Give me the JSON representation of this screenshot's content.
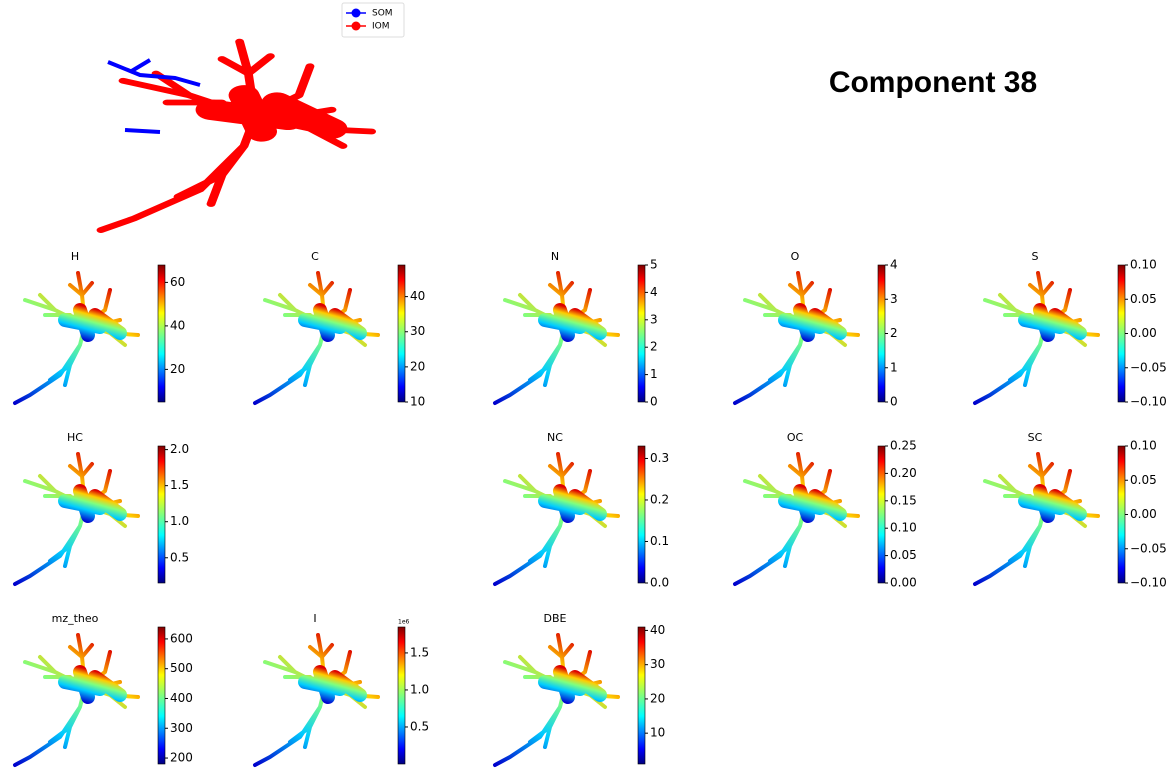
{
  "chart_data": [
    {
      "type": "network",
      "title": "Component 38",
      "series": [
        {
          "name": "SOM",
          "color": "#0000ff"
        },
        {
          "name": "IOM",
          "color": "#ff0000"
        }
      ]
    },
    {
      "type": "colored-network",
      "title": "H",
      "clim": [
        5,
        68
      ],
      "cticks": [
        20,
        40,
        60
      ]
    },
    {
      "type": "colored-network",
      "title": "C",
      "clim": [
        10,
        49
      ],
      "cticks": [
        10,
        20,
        30,
        40
      ]
    },
    {
      "type": "colored-network",
      "title": "N",
      "clim": [
        0,
        5
      ],
      "cticks": [
        0,
        1,
        2,
        3,
        4,
        5
      ]
    },
    {
      "type": "colored-network",
      "title": "O",
      "clim": [
        0,
        4
      ],
      "cticks": [
        0,
        1,
        2,
        3,
        4
      ]
    },
    {
      "type": "colored-network",
      "title": "S",
      "clim": [
        -0.1,
        0.1
      ],
      "cticks": [
        {
          "value": 0.1,
          "label": "0.10"
        },
        {
          "value": 0.05,
          "label": "0.05"
        },
        {
          "value": 0,
          "label": "0.00"
        },
        {
          "value": -0.05,
          "label": "−0.05"
        },
        {
          "value": -0.1,
          "label": "−0.10"
        }
      ]
    },
    {
      "type": "colored-network",
      "title": "HC",
      "clim": [
        0.15,
        2.05
      ],
      "cticks": [
        0.5,
        {
          "value": 1,
          "label": "1.0"
        },
        1.5,
        {
          "value": 2,
          "label": "2.0"
        }
      ]
    },
    {
      "type": "colored-network",
      "title": "NC",
      "clim": [
        0,
        0.33
      ],
      "cticks": [
        {
          "value": 0,
          "label": "0.0"
        },
        0.1,
        0.2,
        0.3
      ]
    },
    {
      "type": "colored-network",
      "title": "OC",
      "clim": [
        0,
        0.25
      ],
      "cticks": [
        {
          "value": 0,
          "label": "0.00"
        },
        0.05,
        {
          "value": 0.1,
          "label": "0.10"
        },
        0.15,
        {
          "value": 0.2,
          "label": "0.20"
        },
        0.25
      ]
    },
    {
      "type": "colored-network",
      "title": "SC",
      "clim": [
        -0.1,
        0.1
      ],
      "cticks": [
        {
          "value": 0.1,
          "label": "0.10"
        },
        {
          "value": 0.05,
          "label": "0.05"
        },
        {
          "value": 0,
          "label": "0.00"
        },
        {
          "value": -0.05,
          "label": "−0.05"
        },
        {
          "value": -0.1,
          "label": "−0.10"
        }
      ]
    },
    {
      "type": "colored-network",
      "title": "mz_theo",
      "clim": [
        180,
        640
      ],
      "cticks": [
        200,
        300,
        400,
        500,
        600
      ]
    },
    {
      "type": "colored-network",
      "title": "I",
      "clim": [
        0,
        1.85
      ],
      "cticks": [
        0.5,
        {
          "value": 1,
          "label": "1.0"
        },
        1.5
      ],
      "offset_label": "1e6"
    },
    {
      "type": "colored-network",
      "title": "DBE",
      "clim": [
        1,
        41
      ],
      "cticks": [
        10,
        20,
        30,
        40
      ]
    }
  ]
}
